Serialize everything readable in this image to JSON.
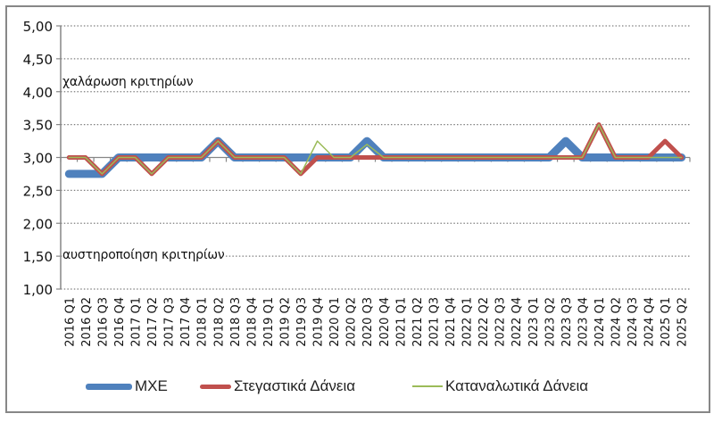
{
  "chart_data": {
    "type": "line",
    "title": "",
    "xlabel": "",
    "ylabel": "",
    "ylim": [
      1.0,
      5.0
    ],
    "yticks": [
      "1,00",
      "1,50",
      "2,00",
      "2,50",
      "3,00",
      "3,50",
      "4,00",
      "4,50",
      "5,00"
    ],
    "ytick_values": [
      1.0,
      1.5,
      2.0,
      2.5,
      3.0,
      3.5,
      4.0,
      4.5,
      5.0
    ],
    "grid": "horizontal dotted",
    "legend_position": "bottom",
    "categories": [
      "2016 Q1",
      "2016 Q2",
      "2016 Q3",
      "2016 Q4",
      "2017 Q1",
      "2017 Q2",
      "2017 Q3",
      "2017 Q4",
      "2018 Q1",
      "2018 Q2",
      "2018 Q3",
      "2018 Q4",
      "2019 Q1",
      "2019 Q2",
      "2019 Q3",
      "2019 Q4",
      "2020 Q1",
      "2020 Q2",
      "2020 Q3",
      "2020 Q4",
      "2021 Q1",
      "2021 Q2",
      "2021 Q3",
      "2021 Q4",
      "2022 Q1",
      "2022 Q2",
      "2022 Q3",
      "2022 Q4",
      "2023 Q1",
      "2023 Q2",
      "2023 Q3",
      "2023 Q4",
      "2024 Q1",
      "2024 Q2",
      "2024 Q3",
      "2024 Q4",
      "2025 Q1",
      "2025 Q2"
    ],
    "series": [
      {
        "name": "ΜΧΕ",
        "color": "#4f81bd",
        "line_width": 9,
        "values": [
          2.75,
          2.75,
          2.75,
          3,
          3,
          3,
          3,
          3,
          3,
          3.25,
          3,
          3,
          3,
          3,
          3,
          3,
          3,
          3,
          3.25,
          3,
          3,
          3,
          3,
          3,
          3,
          3,
          3,
          3,
          3,
          3,
          3.25,
          3,
          3,
          3,
          3,
          3,
          3,
          3
        ]
      },
      {
        "name": "Στεγαστικά Δάνεια",
        "color": "#c0504d",
        "line_width": 5,
        "values": [
          3,
          3,
          2.75,
          3,
          3,
          2.75,
          3,
          3,
          3,
          3.25,
          3,
          3,
          3,
          3,
          2.75,
          3,
          3,
          3,
          3,
          3,
          3,
          3,
          3,
          3,
          3,
          3,
          3,
          3,
          3,
          3,
          3,
          3,
          3.5,
          3,
          3,
          3,
          3.25,
          3
        ]
      },
      {
        "name": "Καταναλωτικά Δάνεια",
        "color": "#9bbb59",
        "line_width": 1.5,
        "values": [
          3,
          3,
          2.75,
          3,
          3,
          2.75,
          3,
          3,
          3,
          3.25,
          3,
          3,
          3,
          3,
          2.75,
          3.25,
          3,
          3,
          3.2,
          3,
          3,
          3,
          3,
          3,
          3,
          3,
          3,
          3,
          3,
          3,
          3,
          3,
          3.5,
          3,
          3,
          3,
          3,
          3
        ]
      }
    ],
    "annotations": [
      {
        "text": "χαλάρωση κριτηρίων",
        "near_y": 4.0
      },
      {
        "text": "αυστηροποίηση κριτηρίων",
        "near_y": 1.5
      }
    ]
  },
  "legend": {
    "items": [
      {
        "label": "ΜΧΕ",
        "color": "#4f81bd"
      },
      {
        "label": "Στεγαστικά Δάνεια",
        "color": "#c0504d"
      },
      {
        "label": "Καταναλωτικά Δάνεια",
        "color": "#9bbb59"
      }
    ]
  },
  "annotations": {
    "top": "χαλάρωση κριτηρίων",
    "bottom": "αυστηροποίηση κριτηρίων"
  }
}
